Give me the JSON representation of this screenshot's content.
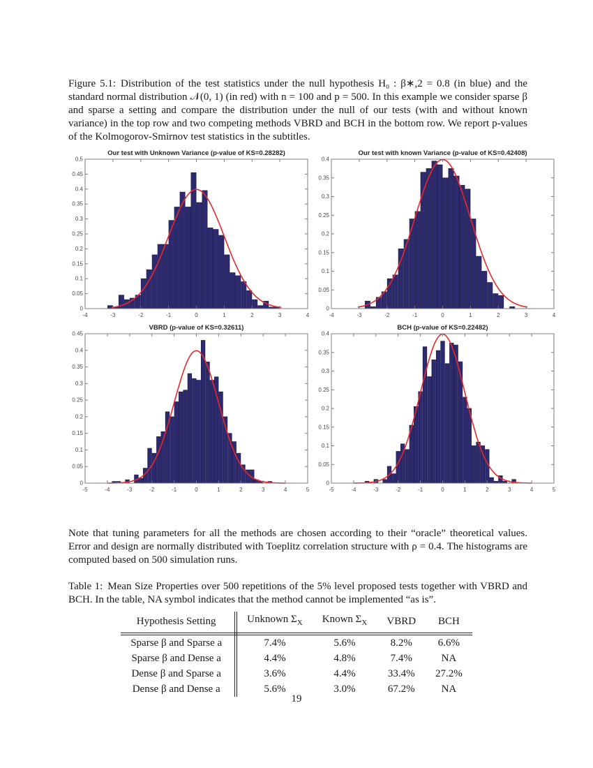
{
  "page": {
    "number": "19"
  },
  "figure_caption": {
    "label": "Figure 5.1:",
    "text": "Distribution of the test statistics under the null hypothesis H₀ : β∗,2 = 0.8 (in blue) and the standard normal distribution 𝒩(0, 1) (in red) with n = 100 and p = 500. In this example we consider sparse β and sparse a setting and compare the distribution under the null of our tests (with and without known variance) in the top row and two competing methods VBRD and BCH in the bottom row. We report p-values of the Kolmogorov-Smirnov test statistics in the subtitles."
  },
  "note": "Note that tuning parameters for all the methods are chosen according to their “oracle” theoretical values. Error and design are normally distributed with Toeplitz correlation structure with ρ = 0.4. The histograms are computed based on 500 simulation runs.",
  "table": {
    "caption_label": "Table 1:",
    "caption_text": "Mean Size Properties over 500 repetitions of the 5% level proposed tests together with VBRD and BCH. In the table, NA symbol indicates that the method cannot be implemented “as is”.",
    "headers": [
      "Hypothesis Setting",
      "Unknown Σ_X",
      "Known Σ_X",
      "VBRD",
      "BCH"
    ],
    "rows": [
      [
        "Sparse β and Sparse a",
        "7.4%",
        "5.6%",
        "8.2%",
        "6.6%"
      ],
      [
        "Sparse β and Dense a",
        "4.4%",
        "4.8%",
        "7.4%",
        "NA"
      ],
      [
        "Dense β and Sparse a",
        "3.6%",
        "4.4%",
        "33.4%",
        "27.2%"
      ],
      [
        "Dense β and Dense a",
        "5.6%",
        "3.0%",
        "67.2%",
        "NA"
      ]
    ]
  },
  "colors": {
    "bar_fill": "#2e2a6e",
    "bar_edge": "#1b1850",
    "curve": "#e8282d",
    "axis": "#7e7e7e",
    "tick_label": "#4a4a4a",
    "title": "#262626"
  },
  "chart_data": [
    {
      "type": "bar",
      "title": "Our test with Unknown Variance  (p-value of KS=0.28282)",
      "xlabel": "",
      "ylabel": "",
      "xlim": [
        -4,
        4
      ],
      "ylim": [
        0,
        0.5
      ],
      "xtick_step": 1,
      "ytick_step": 0.05,
      "grid": false,
      "legend": "none",
      "bin_start": -3.2,
      "bin_width": 0.2,
      "heights": [
        0.01,
        0.005,
        0.045,
        0.03,
        0.035,
        0.045,
        0.1,
        0.13,
        0.18,
        0.215,
        0.215,
        0.295,
        0.34,
        0.39,
        0.34,
        0.455,
        0.355,
        0.395,
        0.27,
        0.265,
        0.245,
        0.18,
        0.12,
        0.11,
        0.09,
        0.06,
        0.03,
        0.01,
        0.025,
        0.005,
        0.005
      ],
      "overlay": "standard normal pdf N(0,1)",
      "curve_range": [
        -3.05,
        3.05
      ]
    },
    {
      "type": "bar",
      "title": "Our test with known Variance  (p-value of KS=0.42408)",
      "xlabel": "",
      "ylabel": "",
      "xlim": [
        -4,
        4
      ],
      "ylim": [
        0,
        0.4
      ],
      "xtick_step": 1,
      "ytick_step": 0.05,
      "grid": false,
      "legend": "none",
      "bin_start": -2.8,
      "bin_width": 0.2,
      "heights": [
        0.02,
        0.005,
        0.03,
        0.045,
        0.08,
        0.09,
        0.16,
        0.185,
        0.24,
        0.26,
        0.365,
        0.375,
        0.395,
        0.385,
        0.35,
        0.375,
        0.355,
        0.33,
        0.32,
        0.24,
        0.14,
        0.1,
        0.07,
        0.04,
        0.035,
        0,
        0.005
      ],
      "overlay": "standard normal pdf N(0,1)",
      "curve_range": [
        -3.05,
        3.05
      ]
    },
    {
      "type": "bar",
      "title": "VBRD  (p-value of KS=0.32611)",
      "xlabel": "",
      "ylabel": "",
      "xlim": [
        -5,
        5
      ],
      "ylim": [
        0,
        0.45
      ],
      "xtick_step": 1,
      "ytick_step": 0.05,
      "grid": false,
      "legend": "none",
      "bin_start": -3.8,
      "bin_width": 0.2,
      "heights": [
        0.005,
        0.005,
        0,
        0.01,
        0,
        0.025,
        0.015,
        0.045,
        0.105,
        0.09,
        0.14,
        0.155,
        0.215,
        0.2,
        0.245,
        0.275,
        0.28,
        0.33,
        0.315,
        0.31,
        0.43,
        0.365,
        0.31,
        0.32,
        0.275,
        0.2,
        0.15,
        0.125,
        0.09,
        0.055,
        0.04,
        0.04,
        0.01,
        0.005,
        0,
        0.005
      ],
      "overlay": "standard normal pdf N(0,1)",
      "curve_range": [
        -4,
        4
      ]
    },
    {
      "type": "bar",
      "title": "BCH  (p-value of KS=0.22482)",
      "xlabel": "",
      "ylabel": "",
      "xlim": [
        -5,
        5
      ],
      "ylim": [
        0,
        0.4
      ],
      "xtick_step": 1,
      "ytick_step": 0.05,
      "grid": false,
      "legend": "none",
      "bin_start": -3.5,
      "bin_width": 0.2,
      "heights": [
        0.005,
        0,
        0.01,
        0,
        0.01,
        0.045,
        0.025,
        0.085,
        0.105,
        0.09,
        0.155,
        0.205,
        0.245,
        0.365,
        0.285,
        0.33,
        0.355,
        0.38,
        0.32,
        0.375,
        0.37,
        0.325,
        0.23,
        0.2,
        0.1,
        0.11,
        0.1,
        0.09,
        0.015,
        0.005,
        0.02,
        0.005,
        0,
        0.01
      ],
      "overlay": "standard normal pdf N(0,1)",
      "curve_range": [
        -4,
        4
      ]
    }
  ]
}
